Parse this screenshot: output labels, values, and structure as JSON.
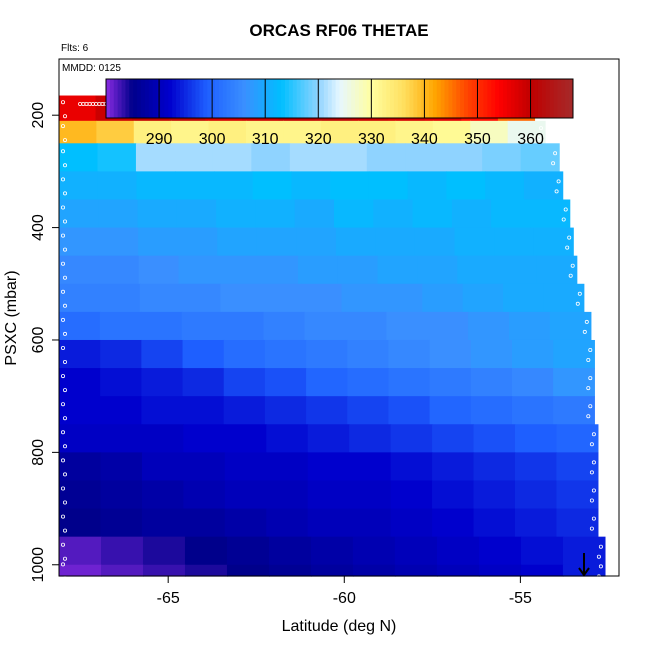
{
  "chart_data": {
    "type": "heatmap",
    "title": "ORCAS RF06 THETAE",
    "flights_label": "Flts: 6",
    "date_label": "MMDD: 0125",
    "xlabel": "Latitude (deg N)",
    "ylabel": "PSXC (mbar)",
    "xlim": [
      -68.1,
      -52.2
    ],
    "ylim": [
      1020,
      100
    ],
    "x_ticks": [
      -65,
      -60,
      -55
    ],
    "x_tick_labels": [
      "-65",
      "-60",
      "-55"
    ],
    "y_ticks": [
      200,
      400,
      600,
      800,
      1000
    ],
    "y_tick_labels": [
      "200",
      "400",
      "600",
      "800",
      "1000"
    ],
    "colorbar": {
      "range": [
        280,
        368
      ],
      "ticks": [
        290,
        300,
        310,
        320,
        330,
        340,
        350,
        360
      ],
      "tick_labels": [
        "290",
        "300",
        "310",
        "320",
        "330",
        "340",
        "350",
        "360"
      ],
      "color_stops": [
        {
          "v": 280,
          "c": "#8a2be2"
        },
        {
          "v": 285,
          "c": "#00008b"
        },
        {
          "v": 292,
          "c": "#0000cd"
        },
        {
          "v": 299,
          "c": "#1e5fff"
        },
        {
          "v": 306,
          "c": "#3a8fff"
        },
        {
          "v": 313,
          "c": "#00bfff"
        },
        {
          "v": 320,
          "c": "#8fd3ff"
        },
        {
          "v": 324,
          "c": "#e6f7ff"
        },
        {
          "v": 330,
          "c": "#ffffa0"
        },
        {
          "v": 336,
          "c": "#ffe060"
        },
        {
          "v": 342,
          "c": "#ffa500"
        },
        {
          "v": 348,
          "c": "#ff4500"
        },
        {
          "v": 354,
          "c": "#ff0000"
        },
        {
          "v": 360,
          "c": "#c00000"
        },
        {
          "v": 368,
          "c": "#a52a2a"
        }
      ]
    },
    "pressure_bins": [
      {
        "p_top": 165,
        "p_bot": 210,
        "lat_max": -54.6,
        "values": [
          356,
          359,
          360,
          361,
          358,
          359,
          360,
          361,
          359,
          358,
          357,
          353,
          346
        ]
      },
      {
        "p_top": 210,
        "p_bot": 250,
        "lat_max": -54.3,
        "values": [
          340,
          338,
          333,
          332,
          333,
          332,
          332,
          333,
          333,
          332,
          331,
          328,
          325
        ]
      },
      {
        "p_top": 250,
        "p_bot": 300,
        "lat_max": -53.9,
        "values": [
          313,
          314,
          321,
          321,
          321,
          320,
          321,
          321,
          320,
          320,
          320,
          319,
          318
        ]
      },
      {
        "p_top": 300,
        "p_bot": 350,
        "lat_max": -53.8,
        "values": [
          311,
          311,
          312,
          312,
          312,
          313,
          312,
          313,
          313,
          312,
          313,
          312,
          311
        ]
      },
      {
        "p_top": 350,
        "p_bot": 400,
        "lat_max": -53.6,
        "values": [
          309,
          309,
          310,
          310,
          311,
          311,
          310,
          312,
          311,
          312,
          311,
          312,
          312
        ]
      },
      {
        "p_top": 400,
        "p_bot": 450,
        "lat_max": -53.5,
        "values": [
          307,
          307,
          308,
          308,
          309,
          309,
          309,
          310,
          310,
          310,
          311,
          311,
          311
        ]
      },
      {
        "p_top": 450,
        "p_bot": 500,
        "lat_max": -53.4,
        "values": [
          305,
          305,
          306,
          307,
          307,
          307,
          308,
          308,
          309,
          309,
          310,
          310,
          310
        ]
      },
      {
        "p_top": 500,
        "p_bot": 550,
        "lat_max": -53.2,
        "values": [
          304,
          304,
          305,
          305,
          306,
          306,
          306,
          307,
          307,
          308,
          309,
          310,
          310
        ]
      },
      {
        "p_top": 550,
        "p_bot": 600,
        "lat_max": -53.0,
        "values": [
          301,
          302,
          302,
          303,
          303,
          304,
          305,
          305,
          306,
          306,
          307,
          308,
          309
        ]
      },
      {
        "p_top": 600,
        "p_bot": 650,
        "lat_max": -52.9,
        "values": [
          294,
          295,
          297,
          299,
          301,
          302,
          303,
          304,
          305,
          306,
          307,
          308,
          309
        ]
      },
      {
        "p_top": 650,
        "p_bot": 700,
        "lat_max": -52.9,
        "values": [
          292,
          293,
          294,
          295,
          297,
          298,
          300,
          301,
          302,
          303,
          304,
          305,
          307
        ]
      },
      {
        "p_top": 700,
        "p_bot": 750,
        "lat_max": -52.9,
        "values": [
          292,
          292,
          293,
          293,
          294,
          295,
          296,
          297,
          298,
          300,
          301,
          302,
          303
        ]
      },
      {
        "p_top": 750,
        "p_bot": 800,
        "lat_max": -52.8,
        "values": [
          291,
          291,
          291,
          292,
          292,
          293,
          294,
          295,
          296,
          297,
          298,
          299,
          300
        ]
      },
      {
        "p_top": 800,
        "p_bot": 850,
        "lat_max": -52.8,
        "values": [
          287,
          288,
          290,
          290,
          291,
          291,
          292,
          292,
          293,
          294,
          295,
          296,
          297
        ]
      },
      {
        "p_top": 850,
        "p_bot": 900,
        "lat_max": -52.8,
        "values": [
          286,
          287,
          288,
          289,
          290,
          290,
          291,
          291,
          292,
          293,
          294,
          295,
          296
        ]
      },
      {
        "p_top": 900,
        "p_bot": 950,
        "lat_max": -52.8,
        "values": [
          285,
          286,
          287,
          287,
          288,
          289,
          290,
          290,
          291,
          292,
          293,
          294,
          295
        ]
      },
      {
        "p_top": 950,
        "p_bot": 1000,
        "lat_max": -52.6,
        "values": [
          282,
          283,
          284,
          285,
          286,
          287,
          288,
          289,
          290,
          291,
          292,
          293,
          294
        ]
      },
      {
        "p_top": 1000,
        "p_bot": 1020,
        "lat_max": -52.6,
        "values": [
          281,
          282,
          283,
          284,
          285,
          286,
          287,
          288,
          289,
          290,
          291,
          292,
          294
        ]
      }
    ],
    "lat_min": -68.1,
    "grid": false,
    "legend": "colorbar top"
  }
}
